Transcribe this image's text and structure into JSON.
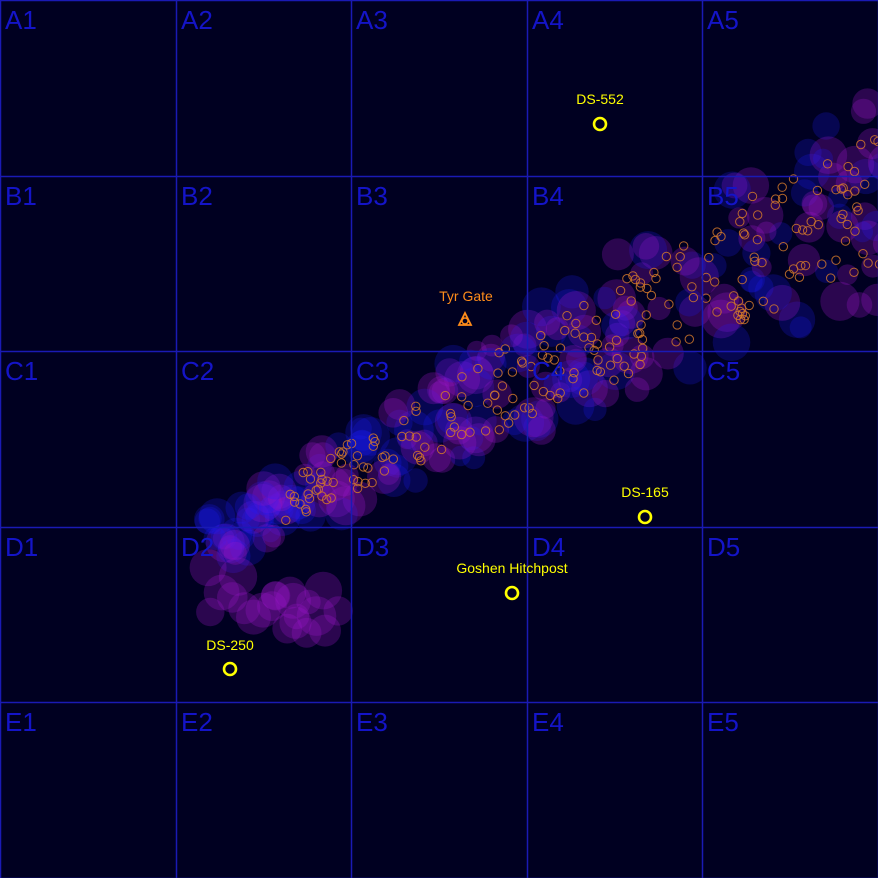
{
  "colors": {
    "background": "#000021",
    "grid": "#1a1ab4",
    "cell_label": "#1414c8",
    "system_marker": "#ffff00",
    "gate_marker": "#ff8c1a",
    "cloud_magenta": "#9a14c8",
    "cloud_blue": "#1a1aff",
    "star_outline": "#d2782a"
  },
  "grid": {
    "rows": [
      "A",
      "B",
      "C",
      "D",
      "E"
    ],
    "cols": [
      "1",
      "2",
      "3",
      "4",
      "5"
    ],
    "cells": [
      [
        "A1",
        "A2",
        "A3",
        "A4",
        "A5"
      ],
      [
        "B1",
        "B2",
        "B3",
        "B4",
        "B5"
      ],
      [
        "C1",
        "C2",
        "C3",
        "C4",
        "C5"
      ],
      [
        "D1",
        "D2",
        "D3",
        "D4",
        "D5"
      ],
      [
        "E1",
        "E2",
        "E3",
        "E4",
        "E5"
      ]
    ]
  },
  "points_of_interest": [
    {
      "label": "DS-552",
      "type": "system",
      "icon": "system-ring-icon"
    },
    {
      "label": "Tyr Gate",
      "type": "gate",
      "icon": "gate-triangle-icon"
    },
    {
      "label": "DS-165",
      "type": "system",
      "icon": "system-ring-icon"
    },
    {
      "label": "Goshen Hitchpost",
      "type": "system",
      "icon": "system-ring-icon"
    },
    {
      "label": "DS-250",
      "type": "system",
      "icon": "system-ring-icon"
    }
  ]
}
